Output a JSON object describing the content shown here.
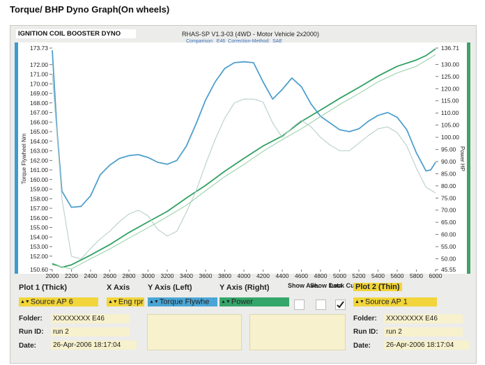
{
  "page_title": "Torque/ BHP Dyno Graph(On wheels)",
  "dyno_title": "IGNITION COIL BOOSTER DYNO",
  "software": "RHAS-SP V1.3-03",
  "vehicle": "(4WD - Motor Vehicle 2x2000)",
  "comparison_label": "Comparison:",
  "comparison_value": "E46",
  "correction_label": "Correction-Method:",
  "correction_value": "SAE",
  "colors": {
    "torque": "#4f9fce",
    "power": "#2fa060",
    "torque_thin": "#b8cfcb",
    "power_thin": "#9bd2aa",
    "left_axis": "#3d9bd0",
    "right_axis": "#3fa267",
    "plot_bg": "#ffffff"
  },
  "chart_data": {
    "type": "line",
    "xlabel": "",
    "ylabel_left": "Torque Flywheel Nm",
    "ylabel_right": "Power HP",
    "x_ticks": [
      "2000",
      "2200",
      "2400",
      "2600",
      "2800",
      "3000",
      "3200",
      "3400",
      "3600",
      "3800",
      "4000",
      "4200",
      "4400",
      "4600",
      "4800",
      "5000",
      "5200",
      "5400",
      "5600",
      "5800",
      "6000"
    ],
    "y_left_ticks": [
      "173.73",
      "172.00",
      "171.00",
      "170.00",
      "169.00",
      "168.00",
      "167.00",
      "166.00",
      "165.00",
      "164.00",
      "163.00",
      "162.00",
      "161.00",
      "160.00",
      "159.00",
      "158.00",
      "157.00",
      "156.00",
      "155.00",
      "154.00",
      "153.00",
      "152.00",
      "150.60"
    ],
    "y_right_ticks": [
      "136.71",
      "130.00",
      "125.00",
      "120.00",
      "115.00",
      "110.00",
      "105.00",
      "100.00",
      "95.00",
      "90.00",
      "85.00",
      "80.00",
      "75.00",
      "70.00",
      "65.00",
      "60.00",
      "55.00",
      "50.00",
      "45.55"
    ],
    "ylim_left": [
      150.6,
      173.73
    ],
    "ylim_right": [
      45.55,
      136.71
    ],
    "xlim": [
      2000,
      6000
    ],
    "series": [
      {
        "axis": "left",
        "style": "thick",
        "x": [
          2000,
          2050,
          2100,
          2200,
          2300,
          2400,
          2500,
          2600,
          2700,
          2800,
          2900,
          3000,
          3100,
          3200,
          3300,
          3400,
          3500,
          3600,
          3700,
          3800,
          3900,
          4000,
          4100,
          4200,
          4300,
          4400,
          4500,
          4600,
          4700,
          4800,
          4900,
          5000,
          5100,
          5200,
          5300,
          5400,
          5500,
          5600,
          5700,
          5800,
          5900,
          5950,
          6000
        ],
        "y": [
          173.5,
          165,
          158.8,
          157.1,
          157.2,
          158.3,
          160.5,
          161.5,
          162.2,
          162.5,
          162.6,
          162.3,
          161.8,
          161.6,
          162.0,
          163.5,
          165.8,
          168.3,
          170.2,
          171.6,
          172.2,
          172.3,
          172.2,
          170.2,
          168.4,
          169.4,
          170.6,
          169.7,
          167.9,
          166.6,
          165.9,
          165.2,
          165.0,
          165.3,
          166.1,
          166.7,
          167.0,
          166.5,
          165.2,
          162.8,
          160.9,
          161.0,
          161.8
        ]
      },
      {
        "axis": "right",
        "style": "thick",
        "x": [
          2000,
          2100,
          2200,
          2400,
          2600,
          2800,
          3000,
          3200,
          3400,
          3600,
          3800,
          4000,
          4200,
          4400,
          4600,
          4800,
          5000,
          5200,
          5400,
          5600,
          5800,
          5900,
          6000
        ],
        "y": [
          48,
          46.5,
          47.5,
          51.5,
          55.8,
          60.8,
          65.2,
          69.5,
          75,
          80.2,
          86,
          91.3,
          96.4,
          100.5,
          106.5,
          111.2,
          116,
          120.5,
          125.2,
          129.2,
          131.8,
          133.6,
          136.4
        ]
      },
      {
        "axis": "left",
        "style": "thin",
        "x": [
          2000,
          2100,
          2200,
          2300,
          2400,
          2500,
          2600,
          2700,
          2800,
          2900,
          3000,
          3100,
          3200,
          3300,
          3400,
          3500,
          3600,
          3700,
          3800,
          3900,
          4000,
          4100,
          4200,
          4300,
          4400,
          4500,
          4600,
          4700,
          4800,
          4900,
          5000,
          5100,
          5200,
          5300,
          5400,
          5500,
          5600,
          5700,
          5800,
          5900,
          6000
        ],
        "y": [
          171,
          158,
          152,
          151.7,
          152.8,
          153.8,
          154.6,
          155.6,
          156.4,
          156.8,
          156.2,
          154.8,
          154.1,
          154.6,
          156.6,
          158.8,
          161.6,
          164.2,
          166.4,
          168.0,
          168.4,
          168.4,
          168.1,
          165.9,
          164.4,
          165.4,
          166.2,
          165.5,
          164.4,
          163.6,
          163.0,
          163.0,
          163.8,
          164.6,
          165.3,
          165.5,
          164.9,
          163.5,
          161.2,
          159.2,
          158.6
        ]
      },
      {
        "axis": "right",
        "style": "thin",
        "x": [
          2000,
          2200,
          2400,
          2600,
          2800,
          3000,
          3200,
          3400,
          3600,
          3800,
          4000,
          4200,
          4400,
          4600,
          4800,
          5000,
          5200,
          5400,
          5600,
          5800,
          6000
        ],
        "y": [
          47.5,
          45.8,
          50,
          54,
          58.5,
          62.8,
          67.3,
          72,
          78,
          83.8,
          88.8,
          94.2,
          99,
          103.5,
          108.5,
          113.5,
          118,
          122.8,
          126.5,
          129.2,
          134
        ]
      }
    ]
  },
  "controls": {
    "plot1_label": "Plot 1 (Thick)",
    "x_axis_label": "X Axis",
    "y_axis_left_label": "Y Axis (Left)",
    "y_axis_right_label": "Y Axis (Right)",
    "show_ave_label": "Show Ave.",
    "show_data_label": "Show Data",
    "lock_cursor_label": "Lock Cursor",
    "plot2_label": "Plot 2 (Thin)",
    "plot1_source": "Source AP 6",
    "x_axis_value": "Eng rpr",
    "y_left_value": "Torque Flywhe",
    "y_right_value": "Power",
    "plot2_source": "Source AP 1",
    "lock_cursor_checked": true,
    "left_info": {
      "folder_label": "Folder:",
      "folder_value": "XXXXXXXX E46",
      "run_label": "Run ID:",
      "run_value": "run 2",
      "date_label": "Date:",
      "date_value": "26-Apr-2006  18:17:04"
    },
    "right_info": {
      "folder_label": "Folder:",
      "folder_value": "XXXXXXXX E46",
      "run_label": "Run ID:",
      "run_value": "run 2",
      "date_label": "Date:",
      "date_value": "26-Apr-2006  18:17:04"
    }
  }
}
